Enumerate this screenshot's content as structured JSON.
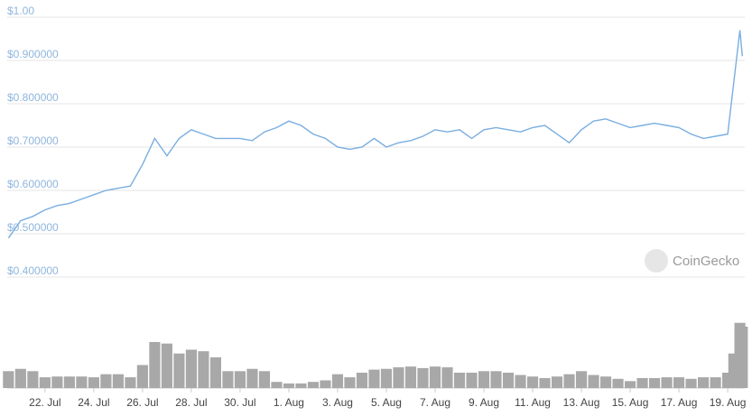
{
  "chart_data": {
    "type": "line",
    "watermark": "CoinGecko",
    "x": [
      -1.5,
      -1,
      -0.5,
      0,
      0.5,
      1,
      1.5,
      2,
      2.5,
      3,
      3.5,
      4,
      4.5,
      5,
      5.5,
      6,
      6.5,
      7,
      7.5,
      8,
      8.5,
      9,
      9.5,
      10,
      10.5,
      11,
      11.5,
      12,
      12.5,
      13,
      13.5,
      14,
      14.5,
      15,
      15.5,
      16,
      16.5,
      17,
      17.5,
      18,
      18.5,
      19,
      19.5,
      20,
      20.5,
      21,
      21.5,
      22,
      22.5,
      23,
      23.5,
      24,
      24.5,
      25,
      25.5,
      26,
      26.5,
      27,
      27.5,
      28,
      28.25,
      28.5,
      28.6
    ],
    "series": [
      {
        "name": "Price",
        "color": "#7aaee0",
        "values": [
          0.49,
          0.53,
          0.54,
          0.555,
          0.565,
          0.57,
          0.58,
          0.59,
          0.6,
          0.605,
          0.61,
          0.66,
          0.72,
          0.68,
          0.72,
          0.74,
          0.73,
          0.72,
          0.72,
          0.72,
          0.715,
          0.735,
          0.745,
          0.76,
          0.75,
          0.73,
          0.72,
          0.7,
          0.695,
          0.7,
          0.72,
          0.7,
          0.71,
          0.715,
          0.725,
          0.74,
          0.735,
          0.74,
          0.72,
          0.74,
          0.745,
          0.74,
          0.735,
          0.745,
          0.75,
          0.73,
          0.71,
          0.74,
          0.76,
          0.765,
          0.755,
          0.745,
          0.75,
          0.755,
          0.75,
          0.745,
          0.73,
          0.72,
          0.725,
          0.73,
          0.85,
          0.97,
          0.91
        ]
      },
      {
        "name": "Volume",
        "color": "#a8a8a8",
        "axis": "y2",
        "values": [
          22,
          25,
          22,
          14,
          15,
          15,
          15,
          14,
          18,
          18,
          14,
          30,
          60,
          58,
          45,
          50,
          48,
          40,
          22,
          22,
          25,
          22,
          8,
          6,
          6,
          8,
          10,
          18,
          14,
          20,
          24,
          25,
          27,
          28,
          26,
          28,
          27,
          20,
          20,
          22,
          22,
          20,
          17,
          15,
          13,
          15,
          18,
          22,
          17,
          15,
          12,
          9,
          13,
          13,
          14,
          14,
          12,
          14,
          14,
          20,
          45,
          85,
          80
        ]
      }
    ],
    "xlim": [
      -1.55,
      28.7
    ],
    "xticks": [
      {
        "value": 0,
        "label": "22. Jul"
      },
      {
        "value": 2,
        "label": "24. Jul"
      },
      {
        "value": 4,
        "label": "26. Jul"
      },
      {
        "value": 6,
        "label": "28. Jul"
      },
      {
        "value": 8,
        "label": "30. Jul"
      },
      {
        "value": 10,
        "label": "1. Aug"
      },
      {
        "value": 12,
        "label": "3. Aug"
      },
      {
        "value": 14,
        "label": "5. Aug"
      },
      {
        "value": 16,
        "label": "7. Aug"
      },
      {
        "value": 18,
        "label": "9. Aug"
      },
      {
        "value": 20,
        "label": "11. Aug"
      },
      {
        "value": 22,
        "label": "13. Aug"
      },
      {
        "value": 24,
        "label": "15. Aug"
      },
      {
        "value": 26,
        "label": "17. Aug"
      },
      {
        "value": 28,
        "label": "19. Aug"
      }
    ],
    "ylim": [
      0.4,
      1.0
    ],
    "yticks": [
      {
        "value": 1.0,
        "label": "$1.00"
      },
      {
        "value": 0.9,
        "label": "$0.900000"
      },
      {
        "value": 0.8,
        "label": "$0.800000"
      },
      {
        "value": 0.7,
        "label": "$0.700000"
      },
      {
        "value": 0.6,
        "label": "$0.600000"
      },
      {
        "value": 0.5,
        "label": "$0.500000"
      },
      {
        "value": 0.4,
        "label": "$0.400000"
      }
    ],
    "y2lim": [
      0,
      100
    ],
    "grid": true
  }
}
